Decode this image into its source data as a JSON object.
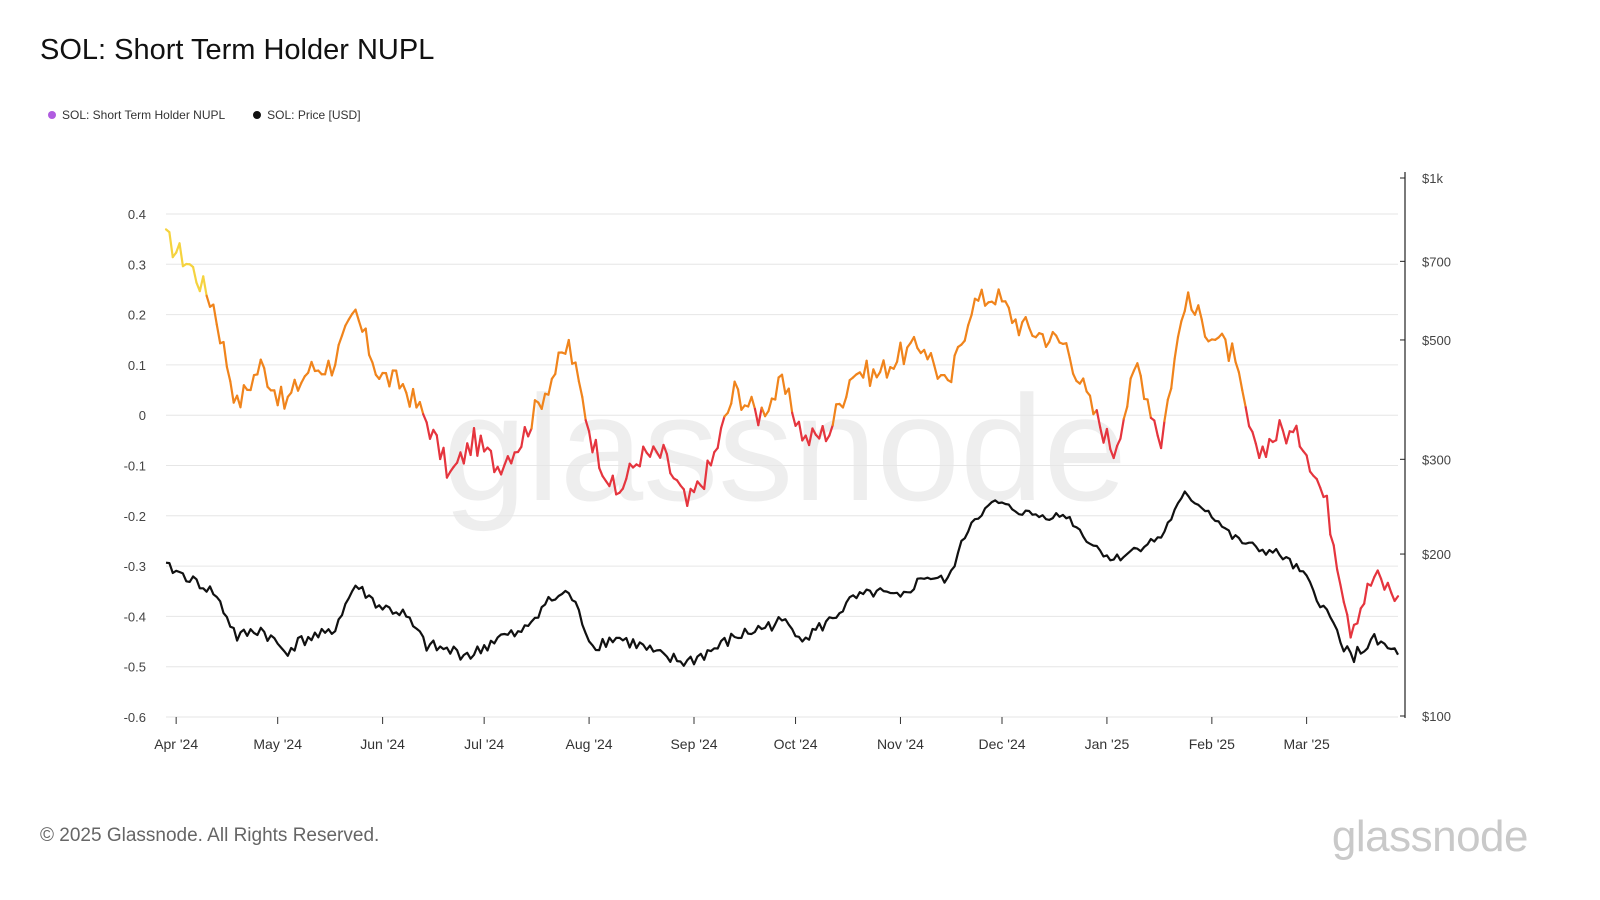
{
  "title": "SOL: Short Term Holder NUPL",
  "footer": "© 2025 Glassnode. All Rights Reserved.",
  "brand": "glassnode",
  "watermark": "glassnode",
  "colors": {
    "nupl_high": "#f5d33f",
    "nupl_mid": "#f0841c",
    "nupl_low": "#e5353e",
    "price": "#111111",
    "legend_nupl": "#b05ce0",
    "grid": "#e6e6e6",
    "watermark": "#eeeeee"
  },
  "chart_data": {
    "type": "line",
    "legend": [
      {
        "name": "SOL: Short Term Holder NUPL",
        "color": "#b05ce0"
      },
      {
        "name": "SOL: Price [USD]",
        "color": "#111111"
      }
    ],
    "x_ticks": [
      "Apr '24",
      "May '24",
      "Jun '24",
      "Jul '24",
      "Aug '24",
      "Sep '24",
      "Oct '24",
      "Nov '24",
      "Dec '24",
      "Jan '25",
      "Feb '25",
      "Mar '25"
    ],
    "y_left": {
      "ticks": [
        "0.4",
        "0.3",
        "0.2",
        "0.1",
        "0",
        "-0.1",
        "-0.2",
        "-0.3",
        "-0.4",
        "-0.5",
        "-0.6"
      ],
      "range": [
        -0.6,
        0.4
      ]
    },
    "y_right": {
      "ticks": [
        "$1k",
        "$700",
        "$500",
        "$300",
        "$200",
        "$100"
      ],
      "values": [
        1000,
        700,
        500,
        300,
        200,
        100
      ],
      "scale": "log",
      "range": [
        100,
        1000
      ]
    },
    "series": [
      {
        "name": "SOL: Short Term Holder NUPL",
        "x": [
          0,
          7,
          14,
          21,
          28,
          35,
          42,
          49,
          56,
          63,
          70,
          77,
          84,
          91,
          98,
          105,
          112,
          119,
          126,
          133,
          140,
          147,
          154,
          161,
          168,
          175,
          182,
          189,
          196,
          203,
          210,
          217,
          224,
          231,
          238,
          245,
          252,
          259,
          266,
          273,
          280,
          287,
          294,
          301,
          308,
          315,
          322,
          329,
          336,
          343,
          350,
          357,
          364
        ],
        "values": [
          0.35,
          0.3,
          0.22,
          0.02,
          0.1,
          0.02,
          0.09,
          0.1,
          0.2,
          0.08,
          0.06,
          -0.01,
          -0.12,
          -0.05,
          -0.1,
          -0.05,
          0.05,
          0.14,
          -0.05,
          -0.16,
          -0.08,
          -0.08,
          -0.18,
          -0.1,
          0.05,
          0.0,
          0.06,
          -0.05,
          -0.03,
          0.09,
          0.08,
          0.12,
          0.14,
          0.05,
          0.22,
          0.24,
          0.18,
          0.16,
          0.14,
          0.02,
          -0.07,
          0.1,
          -0.05,
          0.23,
          0.17,
          0.12,
          -0.08,
          -0.03,
          -0.05,
          -0.18,
          -0.42,
          -0.32,
          -0.36
        ]
      },
      {
        "name": "SOL: Price [USD]",
        "x": [
          0,
          7,
          14,
          21,
          28,
          35,
          42,
          49,
          56,
          63,
          70,
          77,
          84,
          91,
          98,
          105,
          112,
          119,
          126,
          133,
          140,
          147,
          154,
          161,
          168,
          175,
          182,
          189,
          196,
          203,
          210,
          217,
          224,
          231,
          238,
          245,
          252,
          259,
          266,
          273,
          280,
          287,
          294,
          301,
          308,
          315,
          322,
          329,
          336,
          343,
          350,
          357,
          364
        ],
        "values": [
          190,
          180,
          170,
          140,
          145,
          132,
          140,
          142,
          175,
          160,
          155,
          135,
          132,
          130,
          140,
          142,
          162,
          170,
          135,
          140,
          135,
          128,
          126,
          132,
          140,
          145,
          150,
          140,
          150,
          165,
          170,
          165,
          182,
          178,
          230,
          250,
          240,
          235,
          236,
          210,
          195,
          205,
          215,
          258,
          240,
          215,
          205,
          200,
          183,
          155,
          128,
          138,
          130
        ]
      }
    ]
  }
}
